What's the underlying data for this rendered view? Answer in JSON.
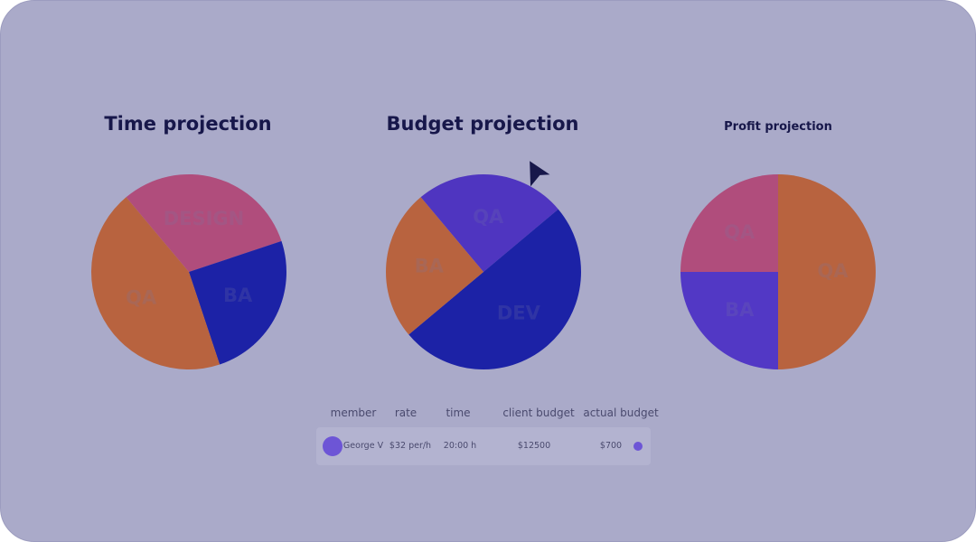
{
  "colors": {
    "background": "#aaaac9",
    "orange": "#b8633f",
    "pink": "#b04d7c",
    "navy": "#1c22a6",
    "purple": "#4f35c0",
    "violet": "#5238c5",
    "title": "#17174a",
    "avatar": "#6d55d6"
  },
  "chart_data": [
    {
      "type": "pie",
      "title": "Time projection",
      "slices": [
        {
          "label": "DESIGN",
          "value": 31,
          "color": "#b04d7c"
        },
        {
          "label": "BA",
          "value": 25,
          "color": "#1c22a6"
        },
        {
          "label": "QA",
          "value": 44,
          "color": "#b8633f"
        }
      ]
    },
    {
      "type": "pie",
      "title": "Budget projection",
      "slices": [
        {
          "label": "QA",
          "value": 25,
          "color": "#4f35c0"
        },
        {
          "label": "DEV",
          "value": 50,
          "color": "#1c22a6"
        },
        {
          "label": "BA",
          "value": 25,
          "color": "#b8633f"
        }
      ]
    },
    {
      "type": "pie",
      "title": "Profit projection",
      "slices": [
        {
          "label": "QA",
          "value": 50,
          "color": "#b8633f"
        },
        {
          "label": "BA",
          "value": 25,
          "color": "#5238c5"
        },
        {
          "label": "QA",
          "value": 25,
          "color": "#b04d7c"
        }
      ]
    }
  ],
  "table": {
    "headers": [
      "member",
      "rate",
      "time",
      "client budget",
      "actual budget"
    ],
    "row": {
      "member": "George V",
      "rate": "$32 per/h",
      "time": "20:00 h",
      "client_budget": "$12500",
      "actual_budget": "$700"
    }
  },
  "cursor_icon": "pointer-arrow-icon"
}
